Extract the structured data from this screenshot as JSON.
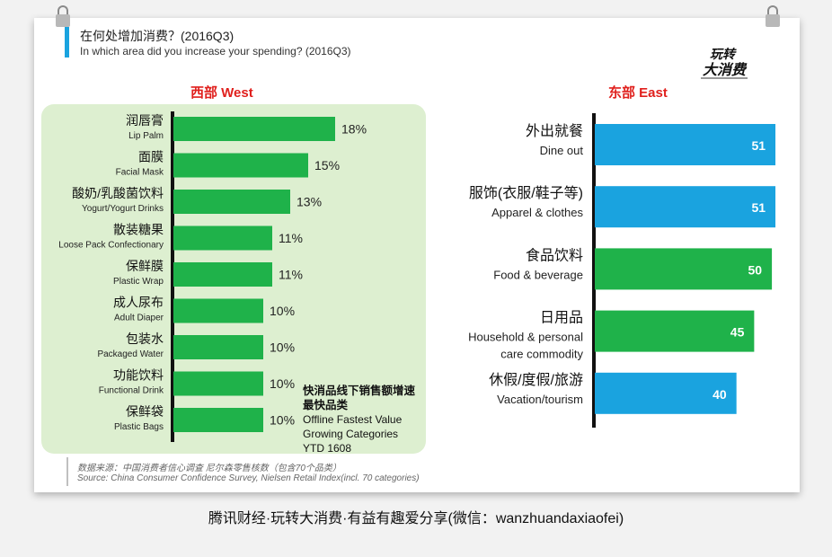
{
  "title": {
    "zh": "在何处增加消费？(2016Q3)",
    "en": "In which area did you increase your spending? (2016Q3)"
  },
  "logo": {
    "line1": "玩转",
    "line2": "大消费"
  },
  "colors": {
    "blue": "#1aa3df",
    "green": "#1fb24a",
    "west_panel": "#ddefd0",
    "header_red": "#e0201d"
  },
  "chart_data": [
    {
      "type": "bar",
      "orientation": "horizontal",
      "title": "西部 West",
      "categories": [
        {
          "zh": "润唇膏",
          "en": "Lip Palm"
        },
        {
          "zh": "面膜",
          "en": "Facial Mask"
        },
        {
          "zh": "酸奶/乳酸菌饮料",
          "en": "Yogurt/Yogurt Drinks"
        },
        {
          "zh": "散装糖果",
          "en": "Loose Pack Confectionary"
        },
        {
          "zh": "保鲜膜",
          "en": "Plastic Wrap"
        },
        {
          "zh": "成人尿布",
          "en": "Adult Diaper"
        },
        {
          "zh": "包装水",
          "en": "Packaged Water"
        },
        {
          "zh": "功能饮料",
          "en": "Functional Drink"
        },
        {
          "zh": "保鲜袋",
          "en": "Plastic Bags"
        }
      ],
      "values": [
        18,
        15,
        13,
        11,
        11,
        10,
        10,
        10,
        10
      ],
      "labels": [
        "18%",
        "15%",
        "13%",
        "11%",
        "11%",
        "10%",
        "10%",
        "10%",
        "10%"
      ],
      "bar_color": "green",
      "xlim": [
        0,
        24
      ],
      "annotation": {
        "zh_line1": "快消品线下销售额增速",
        "zh_line2": "最快品类",
        "en_line1": "Offline Fastest Value",
        "en_line2": "Growing Categories",
        "en_line3": "YTD 1608"
      }
    },
    {
      "type": "bar",
      "orientation": "horizontal",
      "title": "东部 East",
      "categories": [
        {
          "zh": "外出就餐",
          "en": "Dine out"
        },
        {
          "zh": "服饰(衣服/鞋子等)",
          "en": "Apparel & clothes"
        },
        {
          "zh": "食品饮料",
          "en": "Food & beverage"
        },
        {
          "zh": "日用品",
          "en": "Household & personal",
          "en2": "care commodity"
        },
        {
          "zh": "休假/度假/旅游",
          "en": "Vacation/tourism"
        }
      ],
      "values": [
        51,
        51,
        50,
        45,
        40
      ],
      "labels": [
        "51",
        "51",
        "50",
        "45",
        "40"
      ],
      "bar_colors": [
        "blue",
        "blue",
        "green",
        "green",
        "blue"
      ],
      "xlim": [
        0,
        51.5
      ]
    }
  ],
  "source": {
    "zh": "数据来源：中国消费者信心调查 尼尔森零售核数（包含70个品类）",
    "en": "Source: China Consumer Confidence Survey, Nielsen Retail Index(incl. 70 categories)"
  },
  "footer": "腾讯财经·玩转大消费·有益有趣爱分享(微信：wanzhuandaxiaofei)"
}
